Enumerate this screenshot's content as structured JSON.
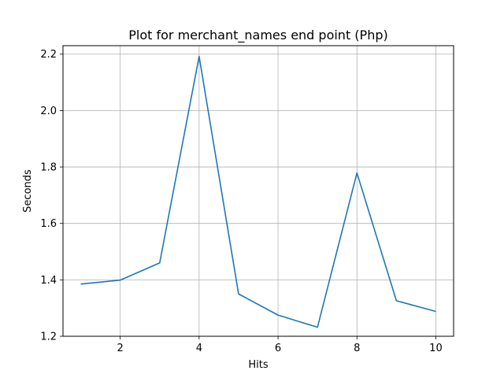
{
  "chart_data": {
    "type": "line",
    "title": "Plot for merchant_names end point (Php)",
    "xlabel": "Hits",
    "ylabel": "Seconds",
    "xlim": [
      0.55,
      10.45
    ],
    "ylim": [
      1.2,
      2.23
    ],
    "xticks": [
      2,
      4,
      6,
      8,
      10
    ],
    "yticks": [
      1.2,
      1.4,
      1.6,
      1.8,
      2.0,
      2.2
    ],
    "ytick_labels": [
      "1.2",
      "1.4",
      "1.6",
      "1.8",
      "2.0",
      "2.2"
    ],
    "grid": true,
    "series": [
      {
        "color": "#1f77b4",
        "x": [
          1,
          2,
          3,
          4,
          5,
          6,
          7,
          8,
          9,
          10
        ],
        "y": [
          1.385,
          1.399,
          1.46,
          2.192,
          1.35,
          1.275,
          1.232,
          1.779,
          1.326,
          1.288
        ]
      }
    ]
  }
}
